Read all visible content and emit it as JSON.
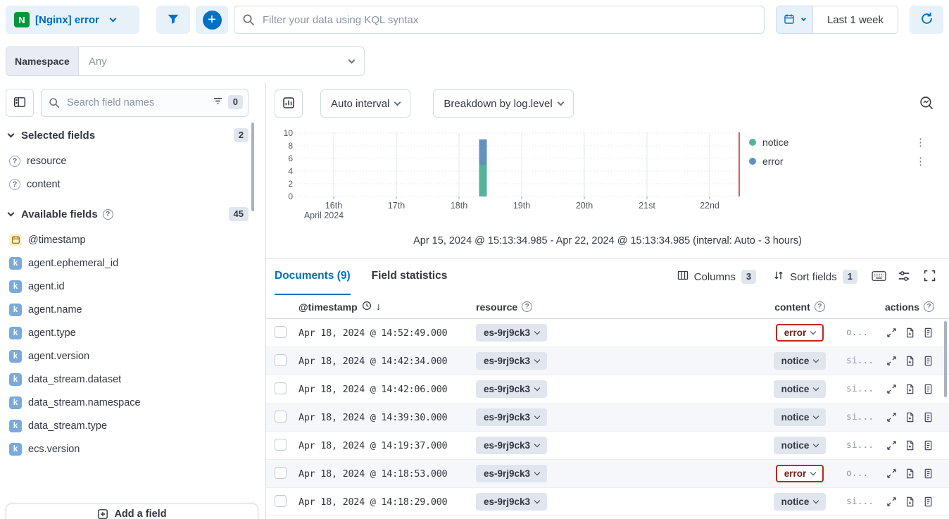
{
  "topbar": {
    "dataview_label": "[Nginx] error",
    "kql_placeholder": "Filter your data using KQL syntax",
    "time_range_label": "Last 1 week"
  },
  "namespace_bar": {
    "label": "Namespace",
    "value": "Any"
  },
  "sidebar": {
    "search_placeholder": "Search field names",
    "filter_badge": "0",
    "selected_fields": {
      "title": "Selected fields",
      "count": "2",
      "items": [
        {
          "name": "resource",
          "type": "question"
        },
        {
          "name": "content",
          "type": "question"
        }
      ]
    },
    "available_fields": {
      "title": "Available fields",
      "count": "45",
      "items": [
        {
          "name": "@timestamp",
          "type": "date"
        },
        {
          "name": "agent.ephemeral_id",
          "type": "keyword"
        },
        {
          "name": "agent.id",
          "type": "keyword"
        },
        {
          "name": "agent.name",
          "type": "keyword"
        },
        {
          "name": "agent.type",
          "type": "keyword"
        },
        {
          "name": "agent.version",
          "type": "keyword"
        },
        {
          "name": "data_stream.dataset",
          "type": "keyword"
        },
        {
          "name": "data_stream.namespace",
          "type": "keyword"
        },
        {
          "name": "data_stream.type",
          "type": "keyword"
        },
        {
          "name": "ecs.version",
          "type": "keyword"
        }
      ]
    },
    "add_field_label": "Add a field"
  },
  "chart_toolbar": {
    "interval_label": "Auto interval",
    "breakdown_label": "Breakdown by log.level"
  },
  "chart_data": {
    "type": "bar",
    "stacked": true,
    "x_ticks": [
      "16th",
      "17th",
      "18th",
      "19th",
      "20th",
      "21st",
      "22nd"
    ],
    "x_axis_secondary": "April 2024",
    "y_ticks": [
      0,
      2,
      4,
      6,
      8,
      10
    ],
    "ylim": [
      0,
      10
    ],
    "x_range": "Apr 15, 2024 @ 15:13:34.985 - Apr 22, 2024 @ 15:13:34.985",
    "series": [
      {
        "name": "notice",
        "color": "#54b399",
        "x": "Apr 18, 2024 ~14:00",
        "value": 5
      },
      {
        "name": "error",
        "color": "#6092c0",
        "x": "Apr 18, 2024 ~14:00",
        "value": 4
      }
    ],
    "legend": [
      {
        "label": "notice",
        "color": "#54b399"
      },
      {
        "label": "error",
        "color": "#6092c0"
      }
    ],
    "legend_position": "right",
    "grid": true,
    "now_marker_color": "#d0362e",
    "caption": "Apr 15, 2024 @ 15:13:34.985 - Apr 22, 2024 @ 15:13:34.985 (interval: Auto - 3 hours)"
  },
  "documents": {
    "tabs": [
      {
        "label": "Documents (9)",
        "active": true
      },
      {
        "label": "Field statistics",
        "active": false
      }
    ],
    "toolbar": {
      "columns_label": "Columns",
      "columns_count": "3",
      "sort_label": "Sort fields",
      "sort_count": "1",
      "icon_buttons": [
        "keyboard",
        "display-options",
        "fullscreen"
      ]
    },
    "table": {
      "headers": [
        "@timestamp",
        "resource",
        "content",
        "actions"
      ],
      "rows": [
        {
          "timestamp": "Apr 18, 2024 @ 14:52:49.000",
          "resource": "es-9rj9ck3",
          "content": "error",
          "preview": "o..."
        },
        {
          "timestamp": "Apr 18, 2024 @ 14:42:34.000",
          "resource": "es-9rj9ck3",
          "content": "notice",
          "preview": "si..."
        },
        {
          "timestamp": "Apr 18, 2024 @ 14:42:06.000",
          "resource": "es-9rj9ck3",
          "content": "notice",
          "preview": "si..."
        },
        {
          "timestamp": "Apr 18, 2024 @ 14:39:30.000",
          "resource": "es-9rj9ck3",
          "content": "notice",
          "preview": "si..."
        },
        {
          "timestamp": "Apr 18, 2024 @ 14:19:37.000",
          "resource": "es-9rj9ck3",
          "content": "notice",
          "preview": "si..."
        },
        {
          "timestamp": "Apr 18, 2024 @ 14:18:53.000",
          "resource": "es-9rj9ck3",
          "content": "error",
          "preview": "o..."
        },
        {
          "timestamp": "Apr 18, 2024 @ 14:18:29.000",
          "resource": "es-9rj9ck3",
          "content": "notice",
          "preview": "si..."
        }
      ]
    }
  },
  "icons": {
    "legend_menu": "⋮"
  },
  "colors": {
    "primary": "#0071c2",
    "primary_text": "#006bb8",
    "light_blue_bg": "#e6f1fa",
    "border": "#d3dae6",
    "badge_bg": "#e0e5ee",
    "notice_green": "#54b399",
    "error_blue": "#6092c0",
    "error_red": "#bd271e",
    "nginx_green": "#009639"
  }
}
